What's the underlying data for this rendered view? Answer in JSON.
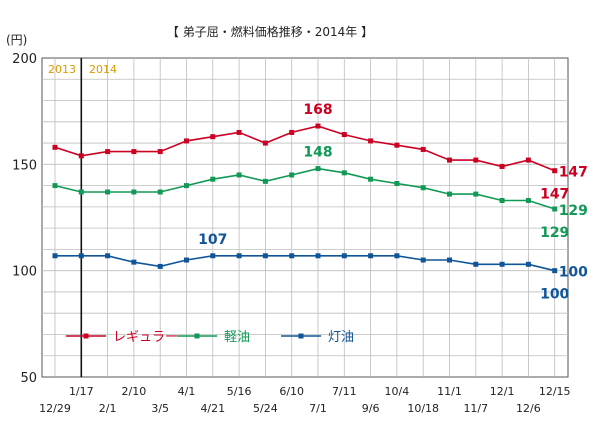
{
  "chart_data": {
    "type": "line",
    "title": "【 弟子屈・燃料価格推移・2014年 】",
    "ylabel": "(円)",
    "ylim": [
      50,
      200
    ],
    "yticks": [
      50,
      100,
      150,
      200
    ],
    "grid": true,
    "year_labels": [
      "2013",
      "2014"
    ],
    "categories": [
      "12/29",
      "1/17",
      "2/1",
      "2/10",
      "3/5",
      "4/1",
      "4/21",
      "5/16",
      "5/24",
      "6/10",
      "7/1",
      "7/11",
      "9/6",
      "10/4",
      "10/18",
      "11/1",
      "11/7",
      "12/1",
      "12/6",
      "12/15"
    ],
    "series": [
      {
        "name": "レギュラー",
        "color": "#cc0022",
        "values": [
          158,
          154,
          156,
          156,
          156,
          161,
          163,
          165,
          160,
          165,
          168,
          164,
          161,
          159,
          157,
          152,
          152,
          149,
          152,
          147
        ]
      },
      {
        "name": "軽油",
        "color": "#119955",
        "values": [
          140,
          137,
          137,
          137,
          137,
          140,
          143,
          145,
          142,
          145,
          148,
          146,
          143,
          141,
          139,
          136,
          136,
          133,
          133,
          129
        ]
      },
      {
        "name": "灯油",
        "color": "#115599",
        "values": [
          107,
          107,
          107,
          104,
          102,
          105,
          107,
          107,
          107,
          107,
          107,
          107,
          107,
          107,
          105,
          105,
          103,
          103,
          103,
          100
        ]
      }
    ],
    "annotations": [
      {
        "text": "168",
        "series": 0,
        "index": 10,
        "pos": "above"
      },
      {
        "text": "148",
        "series": 1,
        "index": 10,
        "pos": "above"
      },
      {
        "text": "107",
        "series": 2,
        "index": 6,
        "pos": "above"
      },
      {
        "text": "147",
        "series": 0,
        "index": 19,
        "pos": "right"
      },
      {
        "text": "147",
        "series": 0,
        "index": 19,
        "pos": "below"
      },
      {
        "text": "129",
        "series": 1,
        "index": 19,
        "pos": "right"
      },
      {
        "text": "129",
        "series": 1,
        "index": 19,
        "pos": "below"
      },
      {
        "text": "100",
        "series": 2,
        "index": 19,
        "pos": "right"
      },
      {
        "text": "100",
        "series": 2,
        "index": 19,
        "pos": "below"
      }
    ],
    "legend": "bottom-left"
  }
}
